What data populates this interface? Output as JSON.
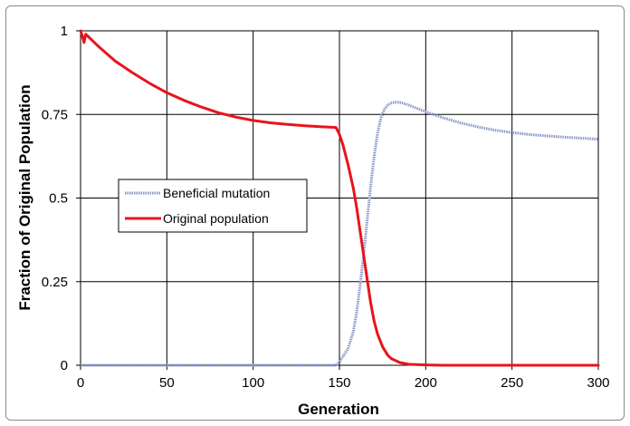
{
  "chart_data": {
    "type": "line",
    "title": "",
    "xlabel": "Generation",
    "ylabel": "Fraction of Original Population",
    "xlim": [
      0,
      300
    ],
    "ylim": [
      0,
      1
    ],
    "xticks": [
      0,
      50,
      100,
      150,
      200,
      250,
      300
    ],
    "xtick_labels": [
      "0",
      "50",
      "100",
      "150",
      "200",
      "250",
      "300"
    ],
    "yticks": [
      0,
      0.25,
      0.5,
      0.75,
      1
    ],
    "ytick_labels": [
      "0",
      "0.25",
      "0.5",
      "0.75",
      "1"
    ],
    "grid": true,
    "legend_position": "center-left",
    "series": [
      {
        "name": "Beneficial mutation",
        "color": "#8a96c8",
        "style": "dotted",
        "x": [
          0,
          50,
          100,
          148,
          150,
          155,
          158,
          160,
          162,
          164,
          166,
          168,
          170,
          172,
          174,
          176,
          178,
          180,
          183,
          186,
          190,
          195,
          200,
          210,
          220,
          230,
          240,
          250,
          260,
          270,
          280,
          290,
          300
        ],
        "y": [
          0,
          0,
          0,
          0,
          0.01,
          0.05,
          0.1,
          0.16,
          0.24,
          0.33,
          0.43,
          0.53,
          0.62,
          0.69,
          0.74,
          0.765,
          0.778,
          0.784,
          0.787,
          0.785,
          0.778,
          0.768,
          0.758,
          0.74,
          0.725,
          0.713,
          0.703,
          0.696,
          0.69,
          0.686,
          0.682,
          0.679,
          0.676
        ]
      },
      {
        "name": "Original population",
        "color": "#e8141c",
        "style": "solid",
        "x": [
          0,
          1,
          2,
          3,
          4,
          6,
          10,
          20,
          30,
          40,
          50,
          60,
          70,
          80,
          90,
          100,
          110,
          120,
          130,
          140,
          148,
          150,
          152,
          155,
          158,
          160,
          162,
          164,
          166,
          168,
          170,
          172,
          175,
          178,
          180,
          185,
          190,
          200,
          210,
          220,
          250,
          300
        ],
        "y": [
          1,
          0.985,
          0.965,
          0.99,
          0.985,
          0.975,
          0.955,
          0.91,
          0.875,
          0.843,
          0.815,
          0.792,
          0.772,
          0.755,
          0.742,
          0.732,
          0.725,
          0.72,
          0.716,
          0.713,
          0.711,
          0.69,
          0.66,
          0.6,
          0.53,
          0.47,
          0.4,
          0.33,
          0.26,
          0.19,
          0.135,
          0.095,
          0.055,
          0.03,
          0.02,
          0.008,
          0.003,
          0.001,
          0,
          0,
          0,
          0
        ]
      }
    ]
  }
}
